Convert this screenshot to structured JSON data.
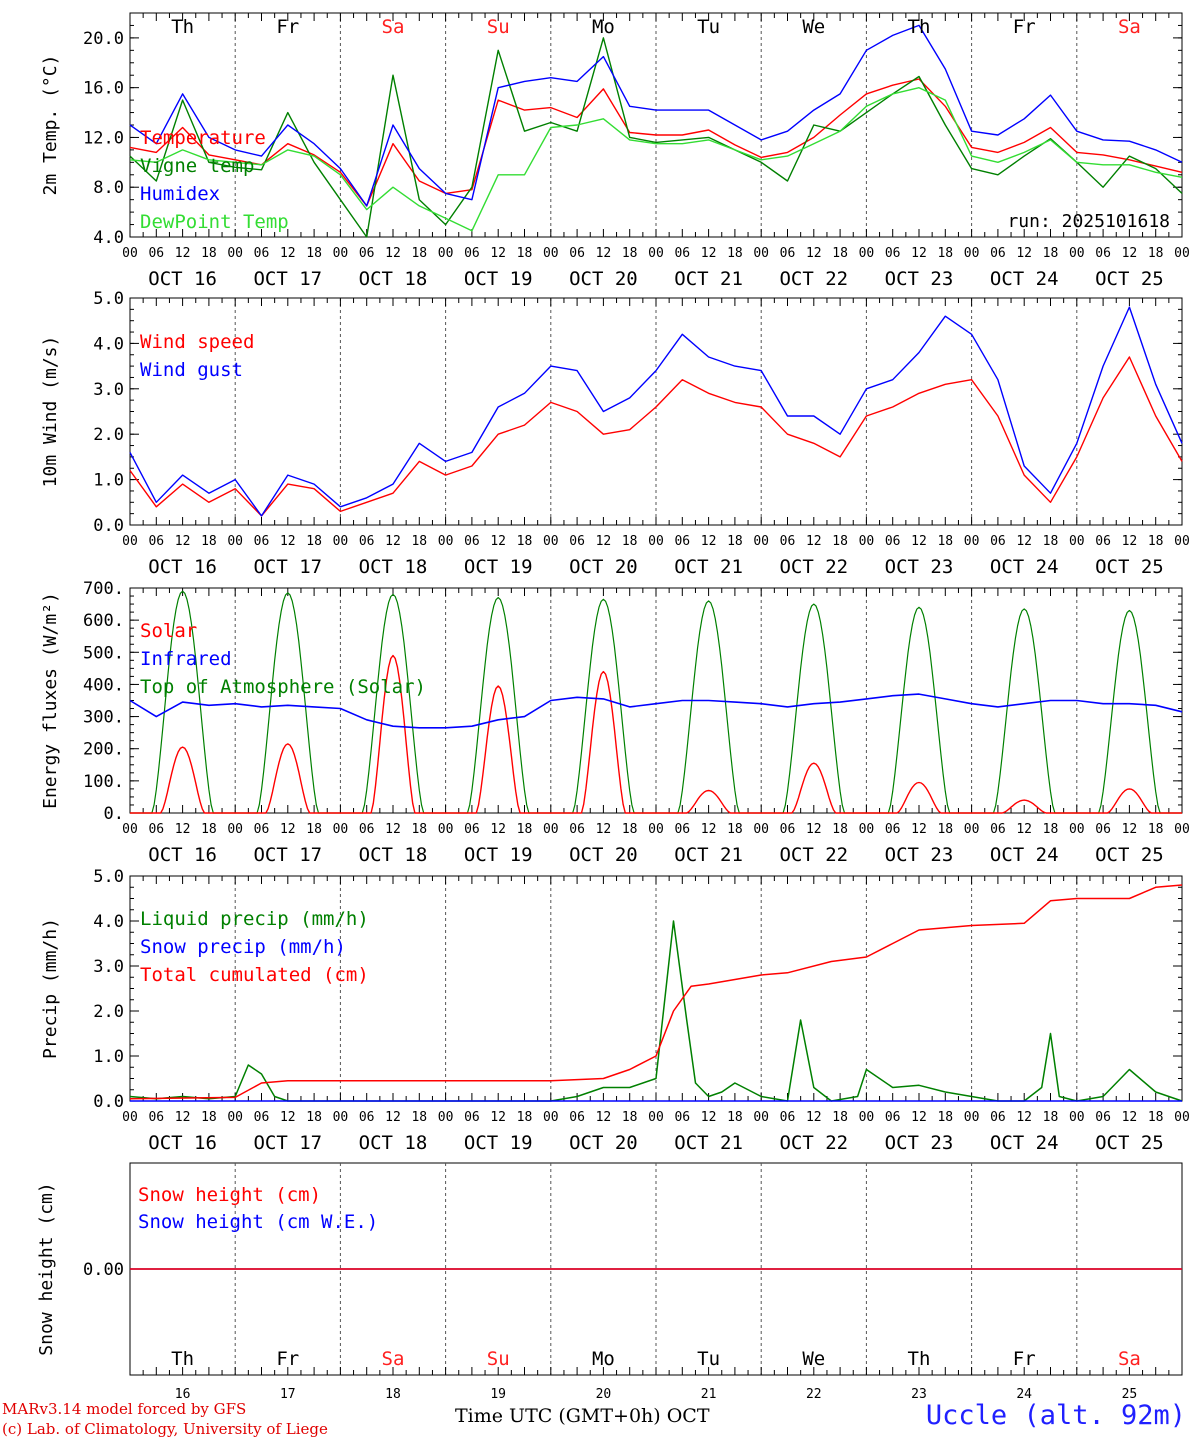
{
  "footer": {
    "credit_line1": "MARv3.14 model forced by GFS",
    "credit_line2": "(c) Lab. of Climatology, University of Liege",
    "xlabel": "Time UTC (GMT+0h) OCT",
    "station": "Uccle (alt. 92m)"
  },
  "colors": {
    "red": "#ff0000",
    "green": "#008000",
    "blue": "#0000ff",
    "lightgreen": "#33dd33",
    "weekend": "#ff2020"
  },
  "chart_data": [
    {
      "type": "line",
      "id": "temperature",
      "ylabel": "2m Temp. (°C)",
      "ylim": [
        4,
        22
      ],
      "yticks": [
        4,
        8,
        12,
        16,
        20
      ],
      "ytick_labels": [
        "4.0",
        "8.0",
        "12.0",
        "16.0",
        "20.0"
      ],
      "top_day_labels": [
        "Th",
        "Fr",
        "Sa",
        "Su",
        "Mo",
        "Tu",
        "We",
        "Th",
        "Fr",
        "Sa"
      ],
      "hour_ticks": [
        "00",
        "06",
        "12",
        "18"
      ],
      "date_labels": [
        "OCT 16",
        "OCT 17",
        "OCT 18",
        "OCT 19",
        "OCT 20",
        "OCT 21",
        "OCT 22",
        "OCT 23",
        "OCT 24",
        "OCT 25"
      ],
      "annotation": "run: 2025101618",
      "x_hours": [
        0,
        6,
        12,
        18,
        24,
        30,
        36,
        42,
        48,
        54,
        60,
        66,
        72,
        78,
        84,
        90,
        96,
        102,
        108,
        114,
        120,
        126,
        132,
        138,
        144,
        150,
        156,
        162,
        168,
        174,
        180,
        186,
        192,
        198,
        204,
        210,
        216,
        222,
        228,
        234,
        240
      ],
      "series": [
        {
          "name": "Temperature",
          "color": "#ff0000",
          "values": [
            11.2,
            10.8,
            12.8,
            10.6,
            10.2,
            9.8,
            11.5,
            10.6,
            9.2,
            6.5,
            11.5,
            8.5,
            7.5,
            7.8,
            15.0,
            14.2,
            14.4,
            13.6,
            15.9,
            12.4,
            12.2,
            12.2,
            12.6,
            11.4,
            10.4,
            10.8,
            12.0,
            13.8,
            15.5,
            16.2,
            16.7,
            14.5,
            11.2,
            10.8,
            11.6,
            12.8,
            10.8,
            10.6,
            10.2,
            9.7,
            9.2
          ]
        },
        {
          "name": "Vigne temp",
          "color": "#008000",
          "values": [
            10.5,
            8.5,
            15.0,
            10.0,
            9.6,
            9.4,
            14.0,
            10.0,
            7.0,
            4.0,
            17.0,
            7.0,
            5.0,
            8.0,
            19.0,
            12.5,
            13.2,
            12.5,
            20.0,
            12.0,
            11.6,
            11.8,
            12.0,
            11.0,
            10.0,
            8.5,
            13.0,
            12.5,
            14.0,
            15.5,
            16.9,
            13.0,
            9.5,
            9.0,
            10.5,
            11.9,
            10.0,
            8.0,
            10.5,
            9.5,
            7.5
          ]
        },
        {
          "name": "Humidex",
          "color": "#0000ff",
          "values": [
            13.0,
            11.5,
            15.5,
            12.0,
            11.0,
            10.5,
            13.0,
            11.5,
            9.5,
            6.5,
            13.0,
            9.5,
            7.5,
            7.0,
            16.0,
            16.5,
            16.8,
            16.5,
            18.5,
            14.5,
            14.2,
            14.2,
            14.2,
            13.0,
            11.8,
            12.5,
            14.2,
            15.5,
            19.0,
            20.2,
            21.0,
            17.5,
            12.5,
            12.2,
            13.5,
            15.4,
            12.5,
            11.8,
            11.7,
            11.0,
            10.0
          ]
        },
        {
          "name": "DewPoint Temp",
          "color": "#33dd33",
          "values": [
            10.2,
            10.0,
            11.0,
            10.2,
            10.0,
            9.8,
            11.0,
            10.5,
            9.0,
            6.2,
            8.0,
            6.5,
            5.5,
            4.5,
            9.0,
            9.0,
            12.8,
            13.0,
            13.5,
            11.8,
            11.5,
            11.5,
            11.8,
            11.0,
            10.2,
            10.5,
            11.5,
            12.5,
            14.5,
            15.5,
            16.0,
            15.0,
            10.5,
            10.0,
            10.8,
            11.8,
            10.0,
            9.8,
            9.8,
            9.2,
            8.8
          ]
        }
      ]
    },
    {
      "type": "line",
      "id": "wind",
      "ylabel": "10m Wind (m/s)",
      "ylim": [
        0,
        5
      ],
      "yticks": [
        0,
        1,
        2,
        3,
        4,
        5
      ],
      "ytick_labels": [
        "0.0",
        "1.0",
        "2.0",
        "3.0",
        "4.0",
        "5.0"
      ],
      "hour_ticks": [
        "00",
        "06",
        "12",
        "18"
      ],
      "date_labels": [
        "OCT 16",
        "OCT 17",
        "OCT 18",
        "OCT 19",
        "OCT 20",
        "OCT 21",
        "OCT 22",
        "OCT 23",
        "OCT 24",
        "OCT 25"
      ],
      "x_hours": [
        0,
        6,
        12,
        18,
        24,
        30,
        36,
        42,
        48,
        54,
        60,
        66,
        72,
        78,
        84,
        90,
        96,
        102,
        108,
        114,
        120,
        126,
        132,
        138,
        144,
        150,
        156,
        162,
        168,
        174,
        180,
        186,
        192,
        198,
        204,
        210,
        216,
        222,
        228,
        234,
        240
      ],
      "series": [
        {
          "name": "Wind speed",
          "color": "#ff0000",
          "values": [
            1.2,
            0.4,
            0.9,
            0.5,
            0.8,
            0.2,
            0.9,
            0.8,
            0.3,
            0.5,
            0.7,
            1.4,
            1.1,
            1.3,
            2.0,
            2.2,
            2.7,
            2.5,
            2.0,
            2.1,
            2.6,
            3.2,
            2.9,
            2.7,
            2.6,
            2.0,
            1.8,
            1.5,
            2.4,
            2.6,
            2.9,
            3.1,
            3.2,
            2.4,
            1.1,
            0.5,
            1.5,
            2.8,
            3.7,
            2.4,
            1.4
          ]
        },
        {
          "name": "Wind gust",
          "color": "#0000ff",
          "values": [
            1.6,
            0.5,
            1.1,
            0.7,
            1.0,
            0.2,
            1.1,
            0.9,
            0.4,
            0.6,
            0.9,
            1.8,
            1.4,
            1.6,
            2.6,
            2.9,
            3.5,
            3.4,
            2.5,
            2.8,
            3.4,
            4.2,
            3.7,
            3.5,
            3.4,
            2.4,
            2.4,
            2.0,
            3.0,
            3.2,
            3.8,
            4.6,
            4.2,
            3.2,
            1.3,
            0.7,
            1.8,
            3.5,
            4.8,
            3.1,
            1.8
          ]
        }
      ]
    },
    {
      "type": "line",
      "id": "energy",
      "ylabel": "Energy fluxes (W/m²)",
      "ylim": [
        0,
        700
      ],
      "yticks": [
        0,
        100,
        200,
        300,
        400,
        500,
        600,
        700
      ],
      "ytick_labels": [
        "0.",
        "100.",
        "200.",
        "300.",
        "400.",
        "500.",
        "600.",
        "700."
      ],
      "hour_ticks": [
        "00",
        "06",
        "12",
        "18"
      ],
      "date_labels": [
        "OCT 16",
        "OCT 17",
        "OCT 18",
        "OCT 19",
        "OCT 20",
        "OCT 21",
        "OCT 22",
        "OCT 23",
        "OCT 24",
        "OCT 25"
      ],
      "daily_peaks": {
        "Top of Atmosphere (Solar)": [
          690,
          685,
          680,
          670,
          665,
          660,
          650,
          640,
          635,
          630
        ],
        "Solar": [
          205,
          215,
          490,
          395,
          440,
          70,
          155,
          95,
          40,
          75
        ]
      },
      "series": [
        {
          "name": "Solar",
          "color": "#ff0000"
        },
        {
          "name": "Infrared",
          "color": "#0000ff",
          "x_hours": [
            0,
            6,
            12,
            18,
            24,
            30,
            36,
            42,
            48,
            54,
            60,
            66,
            72,
            78,
            84,
            90,
            96,
            102,
            108,
            114,
            120,
            126,
            132,
            138,
            144,
            150,
            156,
            162,
            168,
            174,
            180,
            186,
            192,
            198,
            204,
            210,
            216,
            222,
            228,
            234,
            240
          ],
          "values": [
            350,
            300,
            345,
            335,
            340,
            330,
            335,
            330,
            325,
            290,
            270,
            265,
            265,
            270,
            290,
            300,
            350,
            360,
            355,
            330,
            340,
            350,
            350,
            345,
            340,
            330,
            340,
            345,
            355,
            365,
            370,
            355,
            340,
            330,
            340,
            350,
            350,
            340,
            340,
            335,
            315
          ]
        },
        {
          "name": "Top of Atmosphere (Solar)",
          "color": "#008000"
        }
      ]
    },
    {
      "type": "line",
      "id": "precip",
      "ylabel": "Precip (mm/h)",
      "ylim": [
        0,
        5
      ],
      "yticks": [
        0,
        1,
        2,
        3,
        4,
        5
      ],
      "ytick_labels": [
        "0.0",
        "1.0",
        "2.0",
        "3.0",
        "4.0",
        "5.0"
      ],
      "hour_ticks": [
        "00",
        "06",
        "12",
        "18"
      ],
      "date_labels": [
        "OCT 16",
        "OCT 17",
        "OCT 18",
        "OCT 19",
        "OCT 20",
        "OCT 21",
        "OCT 22",
        "OCT 23",
        "OCT 24",
        "OCT 25"
      ],
      "series": [
        {
          "name": "Liquid precip (mm/h)",
          "color": "#008000",
          "x_hours": [
            0,
            6,
            12,
            18,
            24,
            27,
            30,
            33,
            36,
            42,
            48,
            96,
            102,
            108,
            114,
            120,
            124,
            127,
            129,
            132,
            135,
            138,
            144,
            150,
            153,
            156,
            160,
            166,
            168,
            174,
            180,
            186,
            192,
            198,
            204,
            208,
            210,
            212,
            216,
            222,
            228,
            234,
            240
          ],
          "values": [
            0.1,
            0.05,
            0.1,
            0.05,
            0.1,
            0.8,
            0.6,
            0.1,
            0,
            0,
            0,
            0,
            0.1,
            0.3,
            0.3,
            0.5,
            4.0,
            1.8,
            0.4,
            0.1,
            0.2,
            0.4,
            0.1,
            0,
            1.8,
            0.3,
            0,
            0.1,
            0.7,
            0.3,
            0.35,
            0.2,
            0.1,
            0,
            0,
            0.3,
            1.5,
            0.1,
            0,
            0.1,
            0.7,
            0.2,
            0
          ]
        },
        {
          "name": "Snow precip (mm/h)",
          "color": "#0000ff",
          "x_hours": [
            0,
            240
          ],
          "values": [
            0,
            0
          ]
        },
        {
          "name": "Total cumulated (cm)",
          "color": "#ff0000",
          "x_hours": [
            0,
            24,
            30,
            36,
            48,
            96,
            108,
            114,
            120,
            124,
            128,
            132,
            144,
            150,
            160,
            168,
            174,
            180,
            192,
            204,
            210,
            216,
            228,
            234,
            240
          ],
          "values": [
            0.05,
            0.08,
            0.4,
            0.45,
            0.45,
            0.45,
            0.5,
            0.7,
            1.0,
            2.0,
            2.55,
            2.6,
            2.8,
            2.85,
            3.1,
            3.2,
            3.5,
            3.8,
            3.9,
            3.95,
            4.45,
            4.5,
            4.5,
            4.75,
            4.8
          ]
        }
      ]
    },
    {
      "type": "line",
      "id": "snow",
      "ylabel": "Snow height (cm)",
      "ytick_labels": [
        "0.00"
      ],
      "bottom_day_labels": [
        "Th",
        "Fr",
        "Sa",
        "Su",
        "Mo",
        "Tu",
        "We",
        "Th",
        "Fr",
        "Sa"
      ],
      "day_numbers": [
        "16",
        "17",
        "18",
        "19",
        "20",
        "21",
        "22",
        "23",
        "24",
        "25"
      ],
      "series": [
        {
          "name": "Snow height (cm)",
          "color": "#ff0000",
          "x_hours": [
            0,
            240
          ],
          "values": [
            0,
            0
          ]
        },
        {
          "name": "Snow height (cm W.E.)",
          "color": "#0000ff",
          "x_hours": [
            0,
            240
          ],
          "values": [
            0,
            0
          ]
        }
      ]
    }
  ]
}
